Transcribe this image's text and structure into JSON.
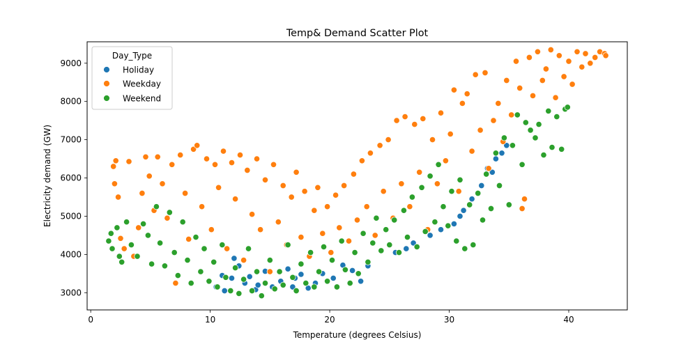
{
  "chart_data": {
    "type": "scatter",
    "title": "Temp& Demand Scatter Plot",
    "xlabel": "Temperature (degrees Celsius)",
    "ylabel": "Electricity demand (GW)",
    "xlim": [
      -0.3,
      44.9
    ],
    "ylim": [
      2550,
      9560
    ],
    "xticks": [
      0,
      10,
      20,
      30,
      40
    ],
    "yticks": [
      3000,
      4000,
      5000,
      6000,
      7000,
      8000,
      9000
    ],
    "grid": false,
    "legend": {
      "title": "Day_Type",
      "placement": "top-left",
      "entries": [
        "Holiday",
        "Weekday",
        "Weekend"
      ]
    },
    "series": [
      {
        "name": "Holiday",
        "color": "#1f77b4",
        "points": [
          [
            10.5,
            3150
          ],
          [
            11.2,
            3050
          ],
          [
            11.8,
            3380
          ],
          [
            12.4,
            3700
          ],
          [
            12.9,
            3250
          ],
          [
            13.3,
            3420
          ],
          [
            13.8,
            3080
          ],
          [
            14.6,
            3560
          ],
          [
            15.2,
            3150
          ],
          [
            15.9,
            3300
          ],
          [
            16.5,
            3620
          ],
          [
            17.1,
            3380
          ],
          [
            17.6,
            3480
          ],
          [
            18.2,
            3120
          ],
          [
            19.4,
            3500
          ],
          [
            20.3,
            3380
          ],
          [
            21.1,
            3720
          ],
          [
            21.9,
            3580
          ],
          [
            22.6,
            3300
          ],
          [
            23.2,
            3700
          ],
          [
            12.0,
            3900
          ],
          [
            11.0,
            3450
          ],
          [
            14.0,
            3200
          ],
          [
            16.9,
            3150
          ],
          [
            18.8,
            3250
          ],
          [
            25.5,
            4050
          ],
          [
            27.0,
            4300
          ],
          [
            29.3,
            4650
          ],
          [
            30.4,
            4800
          ],
          [
            31.2,
            5150
          ],
          [
            31.9,
            5450
          ],
          [
            32.7,
            5800
          ],
          [
            33.2,
            6250
          ],
          [
            33.9,
            6500
          ],
          [
            34.4,
            6650
          ],
          [
            34.8,
            6850
          ],
          [
            33.6,
            6150
          ],
          [
            30.9,
            5000
          ],
          [
            28.4,
            4500
          ],
          [
            26.4,
            4150
          ]
        ]
      },
      {
        "name": "Weekday",
        "color": "#ff7f0e",
        "points": [
          [
            1.9,
            6300
          ],
          [
            2.1,
            6450
          ],
          [
            2.0,
            5850
          ],
          [
            2.3,
            5500
          ],
          [
            2.5,
            4420
          ],
          [
            2.8,
            4150
          ],
          [
            3.2,
            6430
          ],
          [
            3.6,
            3950
          ],
          [
            4.0,
            4700
          ],
          [
            4.3,
            5600
          ],
          [
            4.6,
            6550
          ],
          [
            4.9,
            6050
          ],
          [
            5.3,
            5150
          ],
          [
            5.6,
            6550
          ],
          [
            6.0,
            5850
          ],
          [
            6.4,
            4950
          ],
          [
            6.8,
            6350
          ],
          [
            7.1,
            3250
          ],
          [
            7.5,
            6600
          ],
          [
            7.9,
            5600
          ],
          [
            8.2,
            4400
          ],
          [
            8.6,
            6750
          ],
          [
            8.9,
            6850
          ],
          [
            9.3,
            5250
          ],
          [
            9.7,
            6500
          ],
          [
            10.1,
            4650
          ],
          [
            10.4,
            6350
          ],
          [
            10.7,
            5750
          ],
          [
            11.1,
            6700
          ],
          [
            11.4,
            4150
          ],
          [
            11.8,
            6400
          ],
          [
            12.1,
            5450
          ],
          [
            12.5,
            6600
          ],
          [
            12.8,
            3850
          ],
          [
            13.1,
            6200
          ],
          [
            13.5,
            5050
          ],
          [
            13.9,
            6500
          ],
          [
            14.2,
            4650
          ],
          [
            14.6,
            5950
          ],
          [
            15.0,
            3550
          ],
          [
            15.3,
            6350
          ],
          [
            15.7,
            4850
          ],
          [
            16.1,
            5800
          ],
          [
            16.4,
            4250
          ],
          [
            16.8,
            5500
          ],
          [
            17.2,
            6150
          ],
          [
            17.6,
            4450
          ],
          [
            17.9,
            5650
          ],
          [
            18.3,
            3950
          ],
          [
            18.7,
            5150
          ],
          [
            19.0,
            5750
          ],
          [
            19.4,
            4550
          ],
          [
            19.8,
            5250
          ],
          [
            20.1,
            4050
          ],
          [
            20.5,
            5550
          ],
          [
            20.8,
            4700
          ],
          [
            21.2,
            5800
          ],
          [
            21.6,
            4350
          ],
          [
            22.0,
            6100
          ],
          [
            22.3,
            4900
          ],
          [
            22.7,
            6450
          ],
          [
            23.1,
            5250
          ],
          [
            23.4,
            6650
          ],
          [
            23.8,
            4500
          ],
          [
            24.2,
            6850
          ],
          [
            24.5,
            5650
          ],
          [
            24.9,
            7000
          ],
          [
            25.3,
            4950
          ],
          [
            25.6,
            7500
          ],
          [
            26.0,
            5850
          ],
          [
            26.3,
            7600
          ],
          [
            26.7,
            5250
          ],
          [
            27.1,
            7400
          ],
          [
            27.5,
            6150
          ],
          [
            27.8,
            7550
          ],
          [
            28.2,
            4650
          ],
          [
            28.6,
            7000
          ],
          [
            29.0,
            5850
          ],
          [
            29.3,
            7700
          ],
          [
            29.7,
            6450
          ],
          [
            30.1,
            7150
          ],
          [
            30.4,
            8300
          ],
          [
            30.8,
            5650
          ],
          [
            31.1,
            7950
          ],
          [
            31.5,
            8200
          ],
          [
            31.9,
            6700
          ],
          [
            32.2,
            8700
          ],
          [
            32.6,
            7250
          ],
          [
            33.0,
            8750
          ],
          [
            33.3,
            6250
          ],
          [
            33.7,
            7500
          ],
          [
            34.1,
            7950
          ],
          [
            34.5,
            6950
          ],
          [
            34.8,
            8550
          ],
          [
            35.2,
            7650
          ],
          [
            35.6,
            9050
          ],
          [
            35.9,
            8350
          ],
          [
            36.3,
            5450
          ],
          [
            36.7,
            9150
          ],
          [
            37.0,
            8150
          ],
          [
            37.4,
            9300
          ],
          [
            37.8,
            8550
          ],
          [
            38.1,
            8850
          ],
          [
            38.5,
            9350
          ],
          [
            38.9,
            8100
          ],
          [
            39.2,
            9200
          ],
          [
            39.6,
            8650
          ],
          [
            40.0,
            9050
          ],
          [
            40.3,
            8450
          ],
          [
            40.7,
            9300
          ],
          [
            41.1,
            8900
          ],
          [
            41.4,
            9250
          ],
          [
            41.8,
            9000
          ],
          [
            42.2,
            9150
          ],
          [
            42.6,
            9300
          ],
          [
            43.0,
            9250
          ],
          [
            43.1,
            9200
          ],
          [
            36.1,
            5200
          ]
        ]
      },
      {
        "name": "Weekend",
        "color": "#2ca02c",
        "points": [
          [
            1.5,
            4350
          ],
          [
            1.7,
            4550
          ],
          [
            1.8,
            4150
          ],
          [
            2.2,
            4700
          ],
          [
            2.4,
            3950
          ],
          [
            2.6,
            3800
          ],
          [
            3.0,
            4850
          ],
          [
            3.4,
            4250
          ],
          [
            3.9,
            3950
          ],
          [
            4.4,
            4800
          ],
          [
            4.8,
            4500
          ],
          [
            5.1,
            3750
          ],
          [
            5.5,
            5250
          ],
          [
            5.8,
            4300
          ],
          [
            6.2,
            3700
          ],
          [
            6.6,
            5100
          ],
          [
            7.0,
            4050
          ],
          [
            7.3,
            3450
          ],
          [
            7.7,
            4850
          ],
          [
            8.1,
            3850
          ],
          [
            8.4,
            3250
          ],
          [
            8.8,
            4450
          ],
          [
            9.2,
            3550
          ],
          [
            9.5,
            4150
          ],
          [
            9.9,
            3300
          ],
          [
            10.3,
            3800
          ],
          [
            10.6,
            3150
          ],
          [
            11.0,
            4250
          ],
          [
            11.3,
            3400
          ],
          [
            11.7,
            3050
          ],
          [
            12.1,
            3650
          ],
          [
            12.4,
            2980
          ],
          [
            12.8,
            3350
          ],
          [
            13.2,
            4150
          ],
          [
            13.5,
            3050
          ],
          [
            13.9,
            3550
          ],
          [
            14.3,
            2920
          ],
          [
            14.6,
            3250
          ],
          [
            15.0,
            3850
          ],
          [
            15.4,
            3100
          ],
          [
            15.8,
            3550
          ],
          [
            16.1,
            3200
          ],
          [
            16.5,
            4250
          ],
          [
            16.9,
            3400
          ],
          [
            17.2,
            3050
          ],
          [
            17.6,
            3750
          ],
          [
            18.0,
            3250
          ],
          [
            18.4,
            4050
          ],
          [
            18.7,
            3150
          ],
          [
            19.1,
            3550
          ],
          [
            19.5,
            4200
          ],
          [
            19.8,
            3300
          ],
          [
            20.2,
            3850
          ],
          [
            20.6,
            3150
          ],
          [
            21.0,
            4350
          ],
          [
            21.3,
            3600
          ],
          [
            21.7,
            3250
          ],
          [
            22.1,
            4050
          ],
          [
            22.4,
            3500
          ],
          [
            22.8,
            4550
          ],
          [
            23.2,
            3800
          ],
          [
            23.6,
            4300
          ],
          [
            23.9,
            4950
          ],
          [
            24.3,
            4100
          ],
          [
            24.7,
            4650
          ],
          [
            25.0,
            4250
          ],
          [
            25.4,
            4900
          ],
          [
            25.8,
            4050
          ],
          [
            26.2,
            5150
          ],
          [
            26.5,
            4450
          ],
          [
            26.9,
            5500
          ],
          [
            27.3,
            4200
          ],
          [
            27.7,
            5750
          ],
          [
            28.0,
            4600
          ],
          [
            28.4,
            6050
          ],
          [
            28.8,
            4850
          ],
          [
            29.1,
            6350
          ],
          [
            29.5,
            5250
          ],
          [
            29.9,
            4750
          ],
          [
            30.2,
            5650
          ],
          [
            30.6,
            4350
          ],
          [
            30.9,
            5950
          ],
          [
            31.3,
            4150
          ],
          [
            31.7,
            5300
          ],
          [
            32.0,
            4250
          ],
          [
            32.4,
            5600
          ],
          [
            32.8,
            4900
          ],
          [
            33.1,
            6100
          ],
          [
            33.5,
            5200
          ],
          [
            33.9,
            6650
          ],
          [
            34.2,
            5800
          ],
          [
            34.6,
            7050
          ],
          [
            35.0,
            5300
          ],
          [
            35.3,
            6850
          ],
          [
            35.7,
            7650
          ],
          [
            36.1,
            6350
          ],
          [
            36.4,
            7450
          ],
          [
            36.8,
            7250
          ],
          [
            37.2,
            7050
          ],
          [
            37.5,
            7400
          ],
          [
            37.9,
            6600
          ],
          [
            38.3,
            7750
          ],
          [
            38.6,
            6800
          ],
          [
            39.0,
            7600
          ],
          [
            39.4,
            6750
          ],
          [
            39.7,
            7800
          ],
          [
            39.9,
            7850
          ]
        ]
      }
    ]
  }
}
